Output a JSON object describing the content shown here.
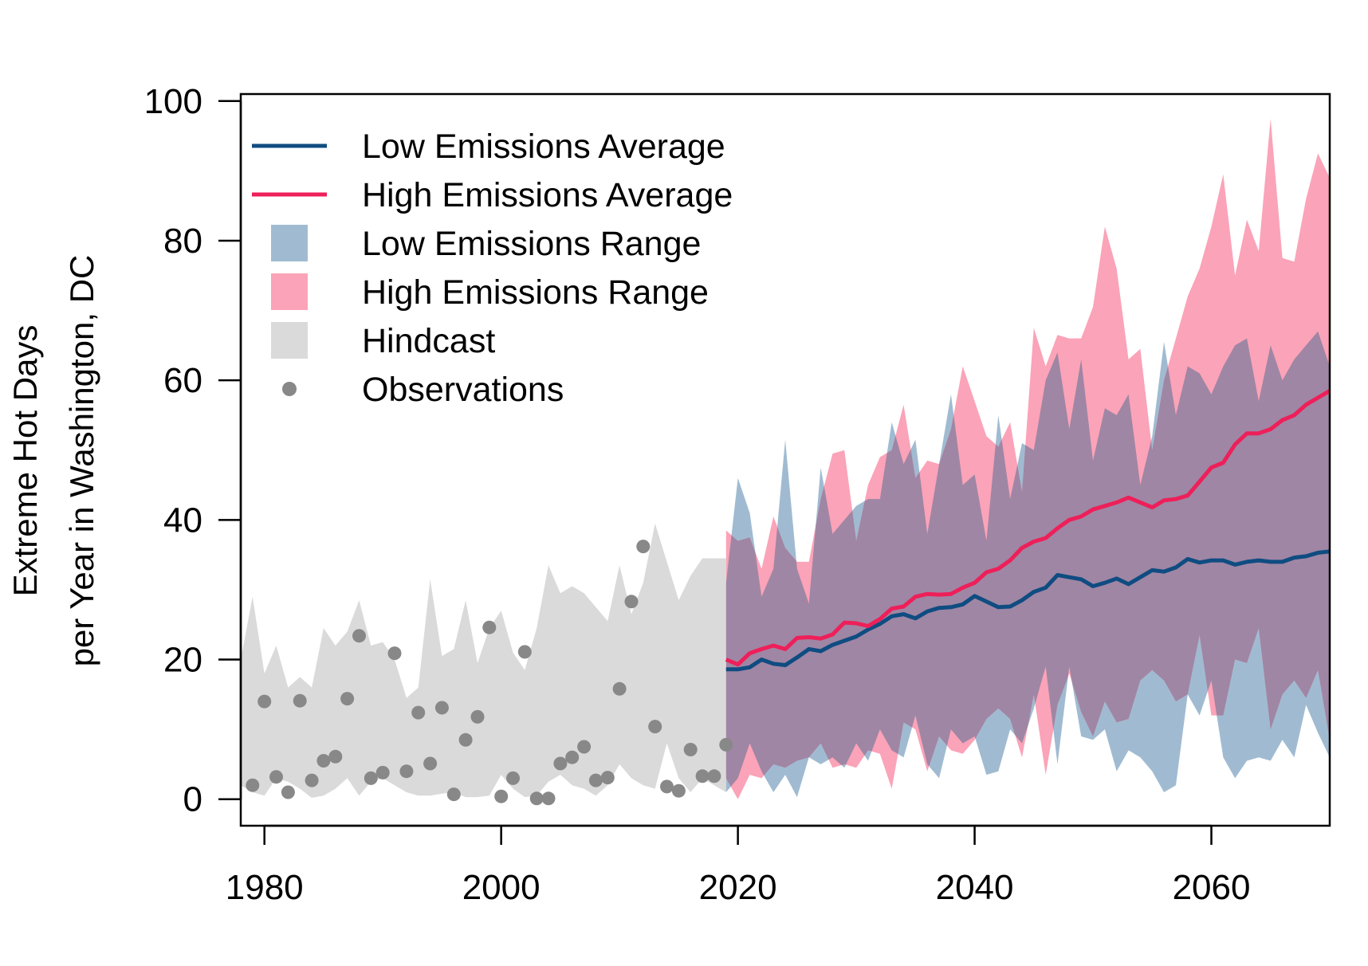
{
  "chart_data": {
    "type": "area",
    "title": "",
    "xlabel": "",
    "ylabel_lines": [
      "Extreme Hot Days",
      "per Year in Washington, DC"
    ],
    "xlim": [
      1978,
      2070
    ],
    "ylim": [
      -3.8,
      101
    ],
    "x_ticks": [
      1980,
      2000,
      2020,
      2040,
      2060
    ],
    "y_ticks": [
      0,
      20,
      40,
      60,
      80,
      100
    ],
    "grid": false,
    "legend_position": "top-left",
    "colors": {
      "low_line": "#0f4c81",
      "high_line": "#ee1f59",
      "low_range": "#a0bbd1",
      "high_range": "#fba3b8",
      "overlap": "#9f86a4",
      "hindcast": "#dadada",
      "observations": "#888888"
    },
    "legend": [
      {
        "label": "Low Emissions Average",
        "kind": "line",
        "color": "#0f4c81"
      },
      {
        "label": "High Emissions Average",
        "kind": "line",
        "color": "#ee1f59"
      },
      {
        "label": "Low Emissions Range",
        "kind": "box",
        "color": "#a0bbd1"
      },
      {
        "label": "High Emissions Range",
        "kind": "box",
        "color": "#fba3b8"
      },
      {
        "label": "Hindcast",
        "kind": "box",
        "color": "#dadada"
      },
      {
        "label": "Observations",
        "kind": "point",
        "color": "#888888"
      }
    ],
    "series": [
      {
        "name": "Hindcast",
        "x": [
          1978,
          1979,
          1980,
          1981,
          1982,
          1983,
          1984,
          1985,
          1986,
          1987,
          1988,
          1989,
          1990,
          1991,
          1992,
          1993,
          1994,
          1995,
          1996,
          1997,
          1998,
          1999,
          2000,
          2001,
          2002,
          2003,
          2004,
          2005,
          2006,
          2007,
          2008,
          2009,
          2010,
          2011,
          2012,
          2013,
          2014,
          2015,
          2016,
          2017,
          2018,
          2019
        ],
        "upper": [
          20,
          29,
          18,
          22,
          16,
          17.5,
          16,
          24.5,
          22,
          24,
          28.5,
          22,
          22.5,
          20,
          14.5,
          16,
          31.5,
          20.5,
          21.5,
          28.5,
          19.5,
          24.5,
          27,
          21,
          18.5,
          24.5,
          33.5,
          29.5,
          30.5,
          29.5,
          27.5,
          25.5,
          33.5,
          26.5,
          31,
          39.5,
          34,
          28.5,
          32,
          34.5,
          34.5,
          34.5
        ],
        "lower": [
          2,
          1,
          0.5,
          3,
          2.5,
          1.5,
          0.2,
          0.5,
          1.5,
          3,
          0.5,
          2.5,
          3,
          2,
          1,
          0.5,
          0.5,
          0.8,
          1,
          0.3,
          0.3,
          0.5,
          3.5,
          1.5,
          0.3,
          0.5,
          2.5,
          3.5,
          2,
          1.5,
          0.5,
          2,
          5,
          3,
          2,
          1.5,
          8,
          3,
          1,
          3,
          2,
          1
        ]
      },
      {
        "name": "Low Emissions Range",
        "x": [
          2019,
          2020,
          2021,
          2022,
          2023,
          2024,
          2025,
          2026,
          2027,
          2028,
          2029,
          2030,
          2031,
          2032,
          2033,
          2034,
          2035,
          2036,
          2037,
          2038,
          2039,
          2040,
          2041,
          2042,
          2043,
          2044,
          2045,
          2046,
          2047,
          2048,
          2049,
          2050,
          2051,
          2052,
          2053,
          2054,
          2055,
          2056,
          2057,
          2058,
          2059,
          2060,
          2061,
          2062,
          2063,
          2064,
          2065,
          2066,
          2067,
          2068,
          2069,
          2070
        ],
        "upper": [
          31,
          46,
          41,
          29,
          33,
          51.5,
          33,
          28,
          47.5,
          38,
          40,
          42,
          43,
          43,
          54,
          48,
          51.5,
          38,
          48,
          58,
          45,
          46.5,
          37,
          55,
          43,
          51,
          50,
          60,
          64,
          53,
          63,
          48.5,
          56,
          55,
          58,
          45,
          52,
          65.5,
          55,
          62,
          61,
          58,
          62,
          65,
          66,
          57,
          65,
          60,
          63,
          65,
          67,
          62
        ],
        "lower": [
          1,
          3,
          8,
          4,
          1,
          3.5,
          0.3,
          6,
          5,
          6,
          4.5,
          8,
          5.5,
          10,
          7,
          6,
          12,
          5,
          3,
          10,
          8,
          9,
          3.5,
          4,
          10,
          8,
          13,
          19,
          5,
          19,
          9,
          8.5,
          10,
          4,
          7,
          6,
          4,
          1,
          2,
          15,
          12,
          17,
          6,
          3,
          5.5,
          6,
          5.5,
          8.5,
          6,
          13.5,
          9.5,
          6
        ]
      },
      {
        "name": "High Emissions Range",
        "x": [
          2019,
          2020,
          2021,
          2022,
          2023,
          2024,
          2025,
          2026,
          2027,
          2028,
          2029,
          2030,
          2031,
          2032,
          2033,
          2034,
          2035,
          2036,
          2037,
          2038,
          2039,
          2040,
          2041,
          2042,
          2043,
          2044,
          2045,
          2046,
          2047,
          2048,
          2049,
          2050,
          2051,
          2052,
          2053,
          2054,
          2055,
          2056,
          2057,
          2058,
          2059,
          2060,
          2061,
          2062,
          2063,
          2064,
          2065,
          2066,
          2067,
          2068,
          2069,
          2070
        ],
        "upper": [
          38.5,
          37,
          37.5,
          33,
          40.5,
          36,
          34,
          34,
          43,
          49.5,
          50,
          37,
          45,
          49,
          50,
          56.5,
          46,
          48.5,
          48,
          53,
          62,
          57,
          52,
          50.5,
          54,
          44,
          67.5,
          62,
          66.5,
          66,
          66,
          70.5,
          82,
          76,
          63,
          64.5,
          50,
          60,
          66,
          72,
          76,
          82,
          89.5,
          75,
          83,
          78.5,
          97.5,
          77.5,
          77,
          86,
          92.5,
          89
        ],
        "lower": [
          3,
          0,
          3.5,
          3,
          5,
          4.5,
          5.5,
          6,
          8,
          4.5,
          5,
          4.5,
          7,
          6.5,
          1.5,
          11,
          10,
          4,
          9,
          7,
          6.5,
          8.5,
          11.5,
          13,
          11.5,
          6,
          15,
          3.5,
          13.5,
          18,
          12.5,
          9,
          14,
          11,
          11.5,
          17,
          18.5,
          17,
          14,
          15,
          23.5,
          12,
          12,
          20,
          19.5,
          24.5,
          10,
          15,
          17,
          14.5,
          18.5,
          8.5
        ]
      },
      {
        "name": "Low Emissions Average",
        "x": [
          2019,
          2020,
          2021,
          2022,
          2023,
          2024,
          2025,
          2026,
          2027,
          2028,
          2029,
          2030,
          2031,
          2032,
          2033,
          2034,
          2035,
          2036,
          2037,
          2038,
          2039,
          2040,
          2041,
          2042,
          2043,
          2044,
          2045,
          2046,
          2047,
          2048,
          2049,
          2050,
          2051,
          2052,
          2053,
          2054,
          2055,
          2056,
          2057,
          2058,
          2059,
          2060,
          2061,
          2062,
          2063,
          2064,
          2065,
          2066,
          2067,
          2068,
          2069,
          2070
        ],
        "values": [
          18.6,
          18.6,
          18.9,
          20,
          19.4,
          19.2,
          20.3,
          21.5,
          21.2,
          22.1,
          22.7,
          23.3,
          24.3,
          25.1,
          26.2,
          26.5,
          25.9,
          26.9,
          27.4,
          27.5,
          27.9,
          29.1,
          28.3,
          27.5,
          27.6,
          28.5,
          29.7,
          30.3,
          32.1,
          31.8,
          31.5,
          30.5,
          31,
          31.6,
          30.8,
          31.8,
          32.8,
          32.6,
          33.2,
          34.4,
          33.9,
          34.2,
          34.2,
          33.6,
          34,
          34.2,
          34,
          34,
          34.6,
          34.8,
          35.3,
          35.5
        ]
      },
      {
        "name": "High Emissions Average",
        "x": [
          2019,
          2020,
          2021,
          2022,
          2023,
          2024,
          2025,
          2026,
          2027,
          2028,
          2029,
          2030,
          2031,
          2032,
          2033,
          2034,
          2035,
          2036,
          2037,
          2038,
          2039,
          2040,
          2041,
          2042,
          2043,
          2044,
          2045,
          2046,
          2047,
          2048,
          2049,
          2050,
          2051,
          2052,
          2053,
          2054,
          2055,
          2056,
          2057,
          2058,
          2059,
          2060,
          2061,
          2062,
          2063,
          2064,
          2065,
          2066,
          2067,
          2068,
          2069,
          2070
        ],
        "values": [
          20,
          19.3,
          20.9,
          21.5,
          22,
          21.5,
          23.1,
          23.2,
          23,
          23.6,
          25.3,
          25.2,
          24.8,
          25.8,
          27.3,
          27.6,
          29,
          29.4,
          29.3,
          29.4,
          30.3,
          31,
          32.5,
          33,
          34.2,
          36,
          36.9,
          37.4,
          38.8,
          40,
          40.5,
          41.5,
          42,
          42.5,
          43.2,
          42.5,
          41.8,
          42.8,
          43,
          43.5,
          45.5,
          47.5,
          48.2,
          50.8,
          52.4,
          52.4,
          53,
          54.3,
          55,
          56.5,
          57.5,
          58.5
        ]
      },
      {
        "name": "Observations",
        "x": [
          1979,
          1980,
          1981,
          1982,
          1983,
          1984,
          1985,
          1986,
          1987,
          1988,
          1989,
          1990,
          1991,
          1992,
          1993,
          1994,
          1995,
          1996,
          1997,
          1998,
          1999,
          2000,
          2001,
          2002,
          2003,
          2004,
          2005,
          2006,
          2007,
          2008,
          2009,
          2010,
          2011,
          2012,
          2013,
          2014,
          2015,
          2016,
          2017,
          2018,
          2019
        ],
        "values": [
          2,
          14,
          3.2,
          1,
          14.1,
          2.7,
          5.5,
          6.1,
          14.4,
          23.4,
          3,
          3.8,
          20.9,
          4,
          12.4,
          5.1,
          13.1,
          0.7,
          8.5,
          11.8,
          24.6,
          0.4,
          3,
          21.1,
          0.1,
          0.1,
          5.1,
          6,
          7.5,
          2.7,
          3.1,
          15.8,
          28.3,
          36.2,
          10.4,
          1.8,
          1.2,
          7.1,
          3.3,
          3.3,
          7.8
        ]
      }
    ]
  }
}
